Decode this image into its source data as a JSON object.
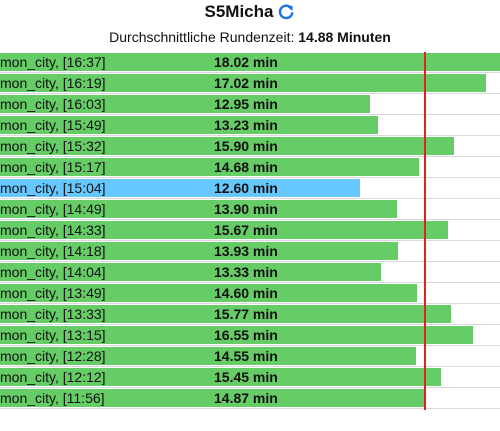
{
  "header": {
    "title": "S5Micha",
    "refresh_icon": "refresh-icon",
    "subtitle_prefix": "Durchschnittliche Rundenzeit:",
    "subtitle_value": "14.88 Minuten"
  },
  "colors": {
    "bar": "#66cc66",
    "active_bar": "#66c8ff",
    "average_line": "#dd2222"
  },
  "average_minutes": 14.88,
  "scale_max_minutes": 17.5,
  "laps": [
    {
      "label": "mon_city, [16:37]",
      "time": "18.02 min",
      "minutes": 18.02,
      "active": false
    },
    {
      "label": "mon_city, [16:19]",
      "time": "17.02 min",
      "minutes": 17.02,
      "active": false
    },
    {
      "label": "mon_city, [16:03]",
      "time": "12.95 min",
      "minutes": 12.95,
      "active": false
    },
    {
      "label": "mon_city, [15:49]",
      "time": "13.23 min",
      "minutes": 13.23,
      "active": false
    },
    {
      "label": "mon_city, [15:32]",
      "time": "15.90 min",
      "minutes": 15.9,
      "active": false
    },
    {
      "label": "mon_city, [15:17]",
      "time": "14.68 min",
      "minutes": 14.68,
      "active": false
    },
    {
      "label": "mon_city, [15:04]",
      "time": "12.60 min",
      "minutes": 12.6,
      "active": true
    },
    {
      "label": "mon_city, [14:49]",
      "time": "13.90 min",
      "minutes": 13.9,
      "active": false
    },
    {
      "label": "mon_city, [14:33]",
      "time": "15.67 min",
      "minutes": 15.67,
      "active": false
    },
    {
      "label": "mon_city, [14:18]",
      "time": "13.93 min",
      "minutes": 13.93,
      "active": false
    },
    {
      "label": "mon_city, [14:04]",
      "time": "13.33 min",
      "minutes": 13.33,
      "active": false
    },
    {
      "label": "mon_city, [13:49]",
      "time": "14.60 min",
      "minutes": 14.6,
      "active": false
    },
    {
      "label": "mon_city, [13:33]",
      "time": "15.77 min",
      "minutes": 15.77,
      "active": false
    },
    {
      "label": "mon_city, [13:15]",
      "time": "16.55 min",
      "minutes": 16.55,
      "active": false
    },
    {
      "label": "mon_city, [12:28]",
      "time": "14.55 min",
      "minutes": 14.55,
      "active": false
    },
    {
      "label": "mon_city, [12:12]",
      "time": "15.45 min",
      "minutes": 15.45,
      "active": false
    },
    {
      "label": "mon_city, [11:56]",
      "time": "14.87 min",
      "minutes": 14.87,
      "active": false
    }
  ]
}
